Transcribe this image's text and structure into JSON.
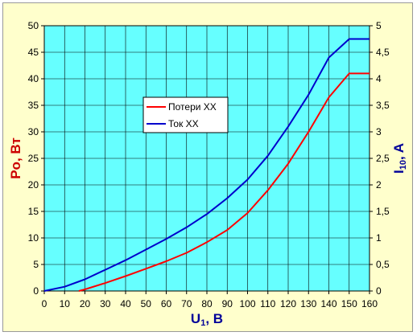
{
  "chart_data": {
    "type": "line",
    "xlabel": "U",
    "xlabel_sub": "1",
    "xlabel_unit": ", В",
    "ylabel_left": "Po, Вт",
    "ylabel_right": "I",
    "ylabel_right_sub": "10",
    "ylabel_right_unit": ", A",
    "xlim": [
      0,
      160
    ],
    "ylim_left": [
      0,
      50
    ],
    "ylim_right": [
      0,
      5
    ],
    "x_ticks": [
      "0",
      "10",
      "20",
      "30",
      "40",
      "50",
      "60",
      "70",
      "80",
      "90",
      "100",
      "110",
      "120",
      "130",
      "140",
      "150",
      "160"
    ],
    "y_left_ticks": [
      "0",
      "5",
      "10",
      "15",
      "20",
      "25",
      "30",
      "35",
      "40",
      "45",
      "50"
    ],
    "y_right_ticks": [
      "0",
      "0,5",
      "1",
      "1,5",
      "2",
      "2,5",
      "3",
      "3,5",
      "4",
      "4,5",
      "5"
    ],
    "grid": true,
    "legend_position": "upper-left-center",
    "series": [
      {
        "name": "Потери ХХ",
        "axis": "left",
        "color": "#ff0000",
        "x": [
          17,
          20,
          30,
          40,
          50,
          60,
          70,
          80,
          90,
          100,
          110,
          120,
          130,
          140,
          150,
          160
        ],
        "y": [
          0,
          0.3,
          1.5,
          2.8,
          4.2,
          5.6,
          7.2,
          9.2,
          11.5,
          14.7,
          19.0,
          24.0,
          30.0,
          36.5,
          41.0,
          41.0
        ]
      },
      {
        "name": "Ток ХХ",
        "axis": "right",
        "color": "#0000cc",
        "x": [
          0,
          10,
          20,
          30,
          40,
          50,
          60,
          70,
          80,
          90,
          100,
          110,
          120,
          130,
          140,
          150,
          160
        ],
        "y": [
          0,
          0.08,
          0.22,
          0.4,
          0.58,
          0.78,
          0.98,
          1.2,
          1.45,
          1.75,
          2.1,
          2.55,
          3.1,
          3.7,
          4.4,
          4.75,
          4.75
        ]
      }
    ]
  },
  "colors": {
    "frame_bg": "#ffffcc",
    "plot_bg": "#66ffff",
    "grid": "#000000",
    "left_axis_title": "#cc0000",
    "right_axis_title": "#000099",
    "x_axis_title": "#000099"
  }
}
